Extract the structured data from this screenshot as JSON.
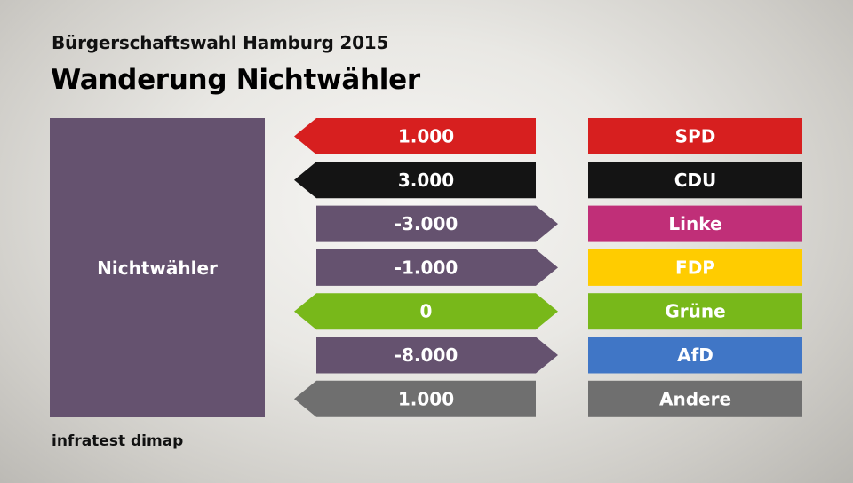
{
  "header": {
    "subtitle": "Bürgerschaftswahl Hamburg 2015",
    "title": "Wanderung Nichtwähler"
  },
  "source_label": "infratest dimap",
  "footer": {
    "credit": "infratest dimap"
  },
  "chart_data": {
    "type": "bar",
    "source_group": "Nichtwähler",
    "categories": [
      "SPD",
      "CDU",
      "Linke",
      "FDP",
      "Grüne",
      "AfD",
      "Andere"
    ],
    "values": [
      1000,
      3000,
      -3000,
      -1000,
      0,
      -8000,
      1000
    ],
    "value_labels": [
      "1.000",
      "3.000",
      "-3.000",
      "-1.000",
      "0",
      "-8.000",
      "1.000"
    ],
    "party_colors": [
      "#d71f1f",
      "#141414",
      "#c02f78",
      "#ffcc00",
      "#78b81a",
      "#4076c6",
      "#6f6f6f"
    ],
    "negative_color": "#65526f",
    "text_color": "#ffffff"
  }
}
